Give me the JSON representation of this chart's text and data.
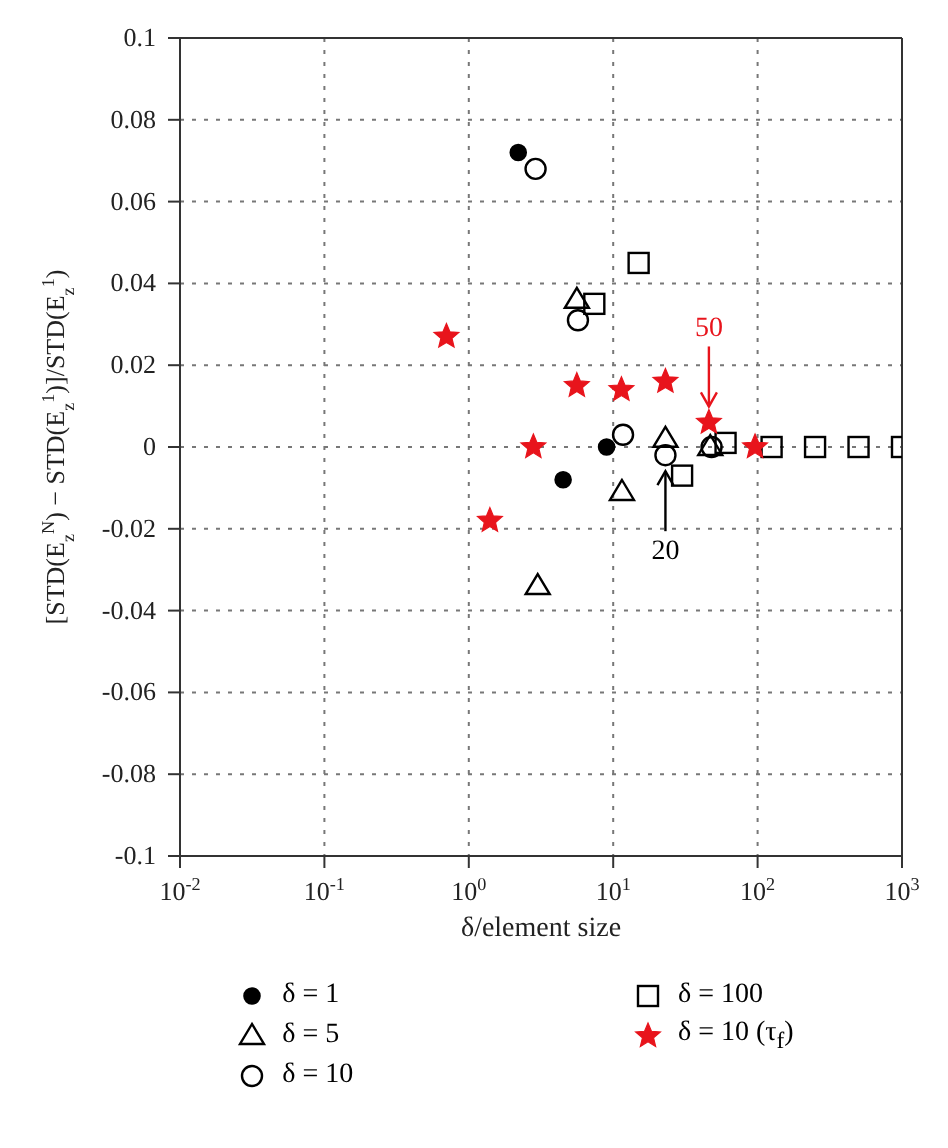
{
  "chart_data": {
    "type": "scatter",
    "xlabel": "δ/element size",
    "ylabel": "[STD(E$_{z}$$^{N}$) − STD(E$_{z}$$^{1}$)]/STD(E$_{z}$$^{1}$)",
    "log": "x",
    "xlim": [
      0.01,
      1000
    ],
    "xticks": [
      {
        "value": 0.01,
        "label": "10$^{-2}$"
      },
      {
        "value": 0.1,
        "label": "10$^{-1}$"
      },
      {
        "value": 1,
        "label": "10$^{0}$"
      },
      {
        "value": 10,
        "label": "10$^{1}$"
      },
      {
        "value": 100,
        "label": "10$^{2}$"
      },
      {
        "value": 1000,
        "label": "10$^{3}$"
      }
    ],
    "ylim": [
      -0.1,
      0.1
    ],
    "yticks": [
      -0.1,
      -0.08,
      -0.06,
      -0.04,
      -0.02,
      0,
      0.02,
      0.04,
      0.06,
      0.08,
      0.1
    ],
    "grid": true,
    "legend": "bottom",
    "series": [
      {
        "name": "δ = 1",
        "color": "#000000",
        "marker": "circle",
        "x": [
          2.2,
          4.5,
          9
        ],
        "values": [
          0.072,
          -0.008,
          0
        ]
      },
      {
        "name": "δ = 5",
        "color": "#000000",
        "marker": "triangle",
        "x": [
          3,
          5.6,
          11.5,
          23,
          47
        ],
        "values": [
          -0.034,
          0.036,
          -0.011,
          0.002,
          0
        ]
      },
      {
        "name": "δ = 10",
        "color": "#000000",
        "marker": "circle",
        "x": [
          2.9,
          5.7,
          11.7,
          23,
          48
        ],
        "values": [
          0.068,
          0.031,
          0.003,
          -0.002,
          0
        ]
      },
      {
        "name": "δ = 100",
        "color": "#000000",
        "marker": "square",
        "x": [
          7.4,
          15,
          30,
          60,
          125,
          250,
          500,
          1000
        ],
        "values": [
          0.035,
          0.045,
          -0.007,
          0.001,
          0,
          0,
          0,
          0
        ]
      },
      {
        "name": "δ = 10 (τ$_{f}$)",
        "color": "#e8141c",
        "marker": "star",
        "x": [
          0.7,
          1.4,
          2.8,
          5.6,
          11.4,
          23,
          46,
          96
        ],
        "values": [
          0.027,
          -0.018,
          0,
          0.015,
          0.014,
          0.016,
          0.006,
          0
        ]
      }
    ],
    "annotations": [
      {
        "text": "50",
        "x": 46,
        "y": 0.006
      },
      {
        "text": "20",
        "x": 23,
        "y": -0.002
      }
    ]
  }
}
